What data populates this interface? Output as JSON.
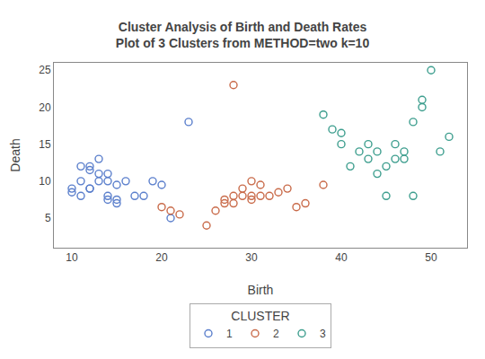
{
  "chart_data": {
    "type": "scatter",
    "title": "Cluster Analysis of Birth and Death Rates",
    "subtitle": "Plot of 3 Clusters from METHOD=two k=10",
    "xlabel": "Birth",
    "ylabel": "Death",
    "xlim": [
      8,
      54
    ],
    "ylim": [
      1,
      26
    ],
    "xticks": [
      10,
      20,
      30,
      40,
      50
    ],
    "yticks": [
      5,
      10,
      15,
      20,
      25
    ],
    "grid": false,
    "legend": "bottom",
    "legend_title": "CLUSTER",
    "series": [
      {
        "name": "1",
        "color": "#5b7fcc",
        "marker": "circle-open",
        "x": [
          10,
          10,
          11,
          11,
          11,
          12,
          12,
          12,
          12,
          13,
          13,
          13,
          14,
          14,
          14,
          14,
          15,
          15,
          15,
          16,
          17,
          18,
          19,
          20,
          21,
          23
        ],
        "values": [
          9.0,
          8.5,
          8.0,
          10.0,
          12.0,
          9.0,
          9.0,
          12.0,
          11.5,
          10.0,
          11.0,
          13.0,
          7.5,
          8.0,
          10.0,
          11.0,
          7.0,
          7.5,
          9.5,
          10.0,
          8.0,
          8.0,
          10.0,
          9.5,
          5.0,
          18.0
        ]
      },
      {
        "name": "2",
        "color": "#c96b4a",
        "marker": "circle-open",
        "x": [
          20,
          21,
          22,
          25,
          26,
          27,
          27,
          28,
          28,
          28,
          29,
          29,
          30,
          30,
          30,
          31,
          31,
          32,
          33,
          34,
          35,
          36,
          38
        ],
        "values": [
          6.5,
          6.0,
          5.5,
          4.0,
          6.0,
          7.0,
          7.5,
          7.0,
          8.0,
          23.0,
          8.0,
          9.0,
          8.0,
          7.5,
          10.0,
          8.0,
          9.5,
          8.0,
          8.5,
          9.0,
          6.5,
          7.0,
          9.5
        ]
      },
      {
        "name": "3",
        "color": "#3d9e8e",
        "marker": "circle-open",
        "x": [
          38,
          39,
          40,
          40,
          41,
          42,
          43,
          43,
          44,
          44,
          45,
          45,
          46,
          46,
          47,
          47,
          48,
          48,
          49,
          49,
          50,
          51,
          52
        ],
        "values": [
          19.0,
          17.0,
          15.0,
          16.5,
          12.0,
          14.0,
          13.0,
          15.0,
          11.0,
          14.0,
          8.0,
          12.0,
          13.0,
          15.0,
          13.0,
          14.0,
          8.0,
          18.0,
          20.0,
          21.0,
          25.0,
          14.0,
          16.0
        ]
      }
    ]
  }
}
